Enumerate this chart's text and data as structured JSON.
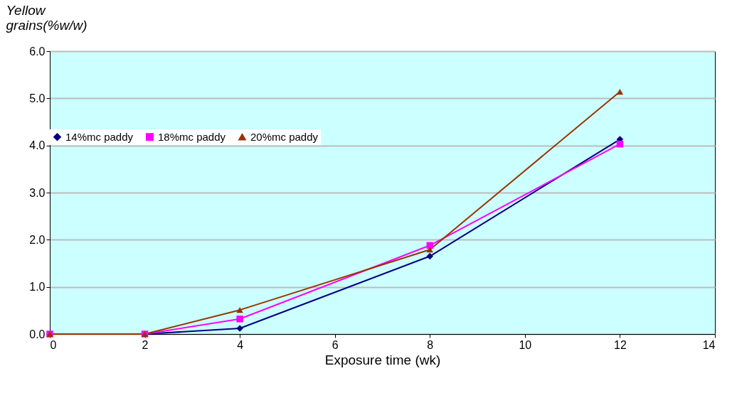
{
  "chart_data": {
    "type": "line",
    "xlabel": "Exposure time (wk)",
    "ylabel": "Yellow grains(%w/w)",
    "x": [
      0,
      2,
      4,
      8,
      12
    ],
    "series": [
      {
        "name": "14%mc paddy",
        "color": "#000080",
        "marker": "diamond",
        "values": [
          0,
          0,
          0.12,
          1.65,
          4.13
        ]
      },
      {
        "name": "18%mc paddy",
        "color": "#ff00ff",
        "marker": "square",
        "values": [
          0,
          0,
          0.32,
          1.88,
          4.03
        ]
      },
      {
        "name": "20%mc paddy",
        "color": "#993300",
        "marker": "triangle",
        "values": [
          0,
          0,
          0.51,
          1.79,
          5.14
        ]
      }
    ],
    "xlim": [
      0,
      14
    ],
    "xticks": [
      0,
      2,
      4,
      6,
      8,
      10,
      12,
      14
    ],
    "ylim": [
      0,
      6
    ],
    "yticks": [
      {
        "value": 0,
        "label": "0.0"
      },
      {
        "value": 1,
        "label": "1.0"
      },
      {
        "value": 2,
        "label": "2.0"
      },
      {
        "value": 3,
        "label": "3.0"
      },
      {
        "value": 4,
        "label": "4.0"
      },
      {
        "value": 5,
        "label": "5.0"
      },
      {
        "value": 6,
        "label": "6.0"
      }
    ],
    "grid": "y",
    "legend": "left",
    "line_style": "solid"
  }
}
